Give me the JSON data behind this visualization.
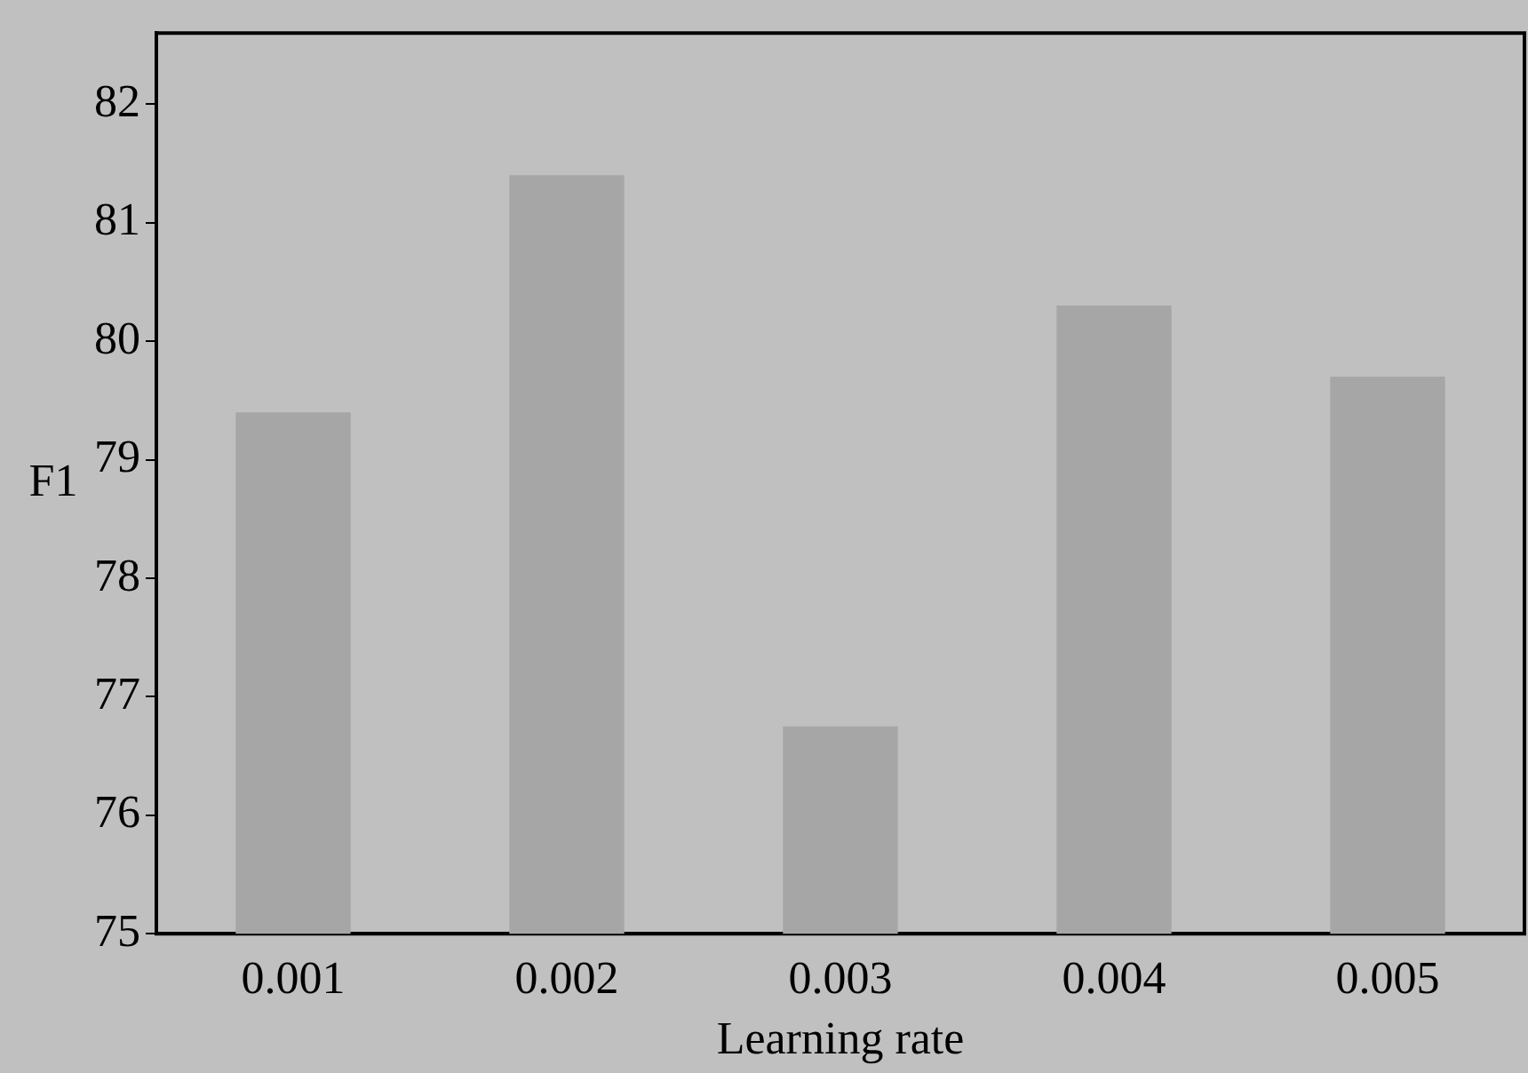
{
  "chart_data": {
    "type": "bar",
    "xlabel": "Learning rate",
    "ylabel": "F1",
    "categories": [
      "0.001",
      "0.002",
      "0.003",
      "0.004",
      "0.005"
    ],
    "values": [
      79.4,
      81.4,
      76.75,
      80.3,
      79.7
    ],
    "color": "#a6a6a6",
    "ylim": [
      75,
      82.6
    ],
    "yticks": [
      75,
      76,
      77,
      78,
      79,
      80,
      81,
      82
    ]
  }
}
